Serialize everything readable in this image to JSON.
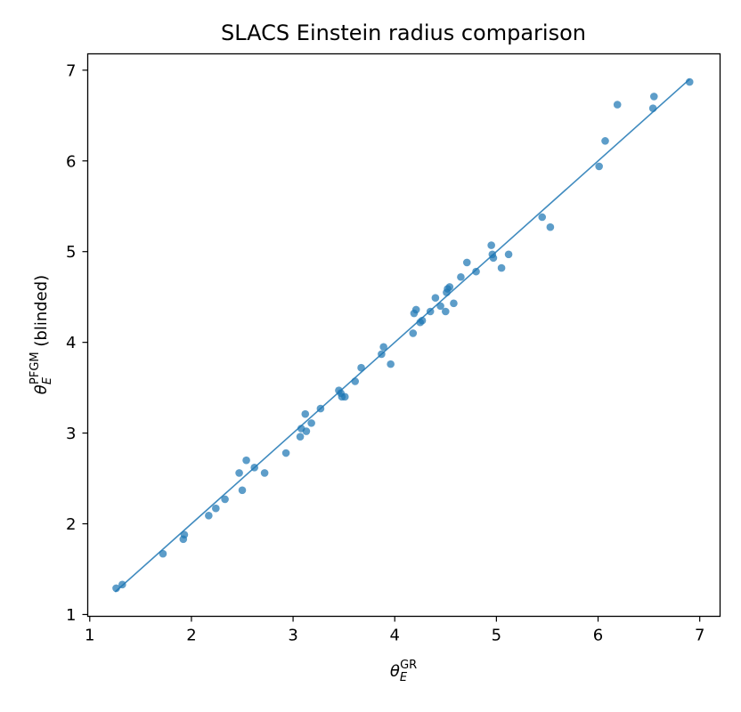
{
  "chart_data": {
    "type": "scatter",
    "title": "SLACS Einstein radius comparison",
    "xlabel": {
      "symbol": "θ",
      "subscript": "E",
      "superscript": "GR",
      "suffix": ""
    },
    "ylabel": {
      "symbol": "θ",
      "subscript": "E",
      "superscript": "PFGM",
      "suffix": " (blinded)"
    },
    "xlim": [
      0.98,
      7.2
    ],
    "ylim": [
      0.98,
      7.18
    ],
    "xticks": [
      1,
      2,
      3,
      4,
      5,
      6,
      7
    ],
    "yticks": [
      1,
      2,
      3,
      4,
      5,
      6,
      7
    ],
    "grid": false,
    "colors": {
      "marker": "#1f77b4",
      "line": "#1f77b4"
    },
    "reference_line": {
      "x": [
        1.25,
        6.9
      ],
      "y": [
        1.25,
        6.9
      ]
    },
    "points": [
      [
        1.26,
        1.29
      ],
      [
        1.32,
        1.33
      ],
      [
        1.72,
        1.67
      ],
      [
        1.92,
        1.83
      ],
      [
        1.93,
        1.88
      ],
      [
        2.17,
        2.09
      ],
      [
        2.24,
        2.17
      ],
      [
        2.33,
        2.27
      ],
      [
        2.47,
        2.56
      ],
      [
        2.5,
        2.37
      ],
      [
        2.54,
        2.7
      ],
      [
        2.62,
        2.62
      ],
      [
        2.72,
        2.56
      ],
      [
        2.93,
        2.78
      ],
      [
        3.07,
        2.96
      ],
      [
        3.08,
        3.05
      ],
      [
        3.12,
        3.21
      ],
      [
        3.13,
        3.02
      ],
      [
        3.18,
        3.11
      ],
      [
        3.27,
        3.27
      ],
      [
        3.45,
        3.47
      ],
      [
        3.47,
        3.44
      ],
      [
        3.48,
        3.4
      ],
      [
        3.51,
        3.4
      ],
      [
        3.61,
        3.57
      ],
      [
        3.67,
        3.72
      ],
      [
        3.87,
        3.87
      ],
      [
        3.89,
        3.95
      ],
      [
        3.96,
        3.76
      ],
      [
        4.18,
        4.1
      ],
      [
        4.19,
        4.32
      ],
      [
        4.21,
        4.36
      ],
      [
        4.25,
        4.22
      ],
      [
        4.27,
        4.24
      ],
      [
        4.35,
        4.34
      ],
      [
        4.4,
        4.49
      ],
      [
        4.45,
        4.4
      ],
      [
        4.5,
        4.34
      ],
      [
        4.51,
        4.55
      ],
      [
        4.52,
        4.59
      ],
      [
        4.54,
        4.61
      ],
      [
        4.58,
        4.43
      ],
      [
        4.65,
        4.72
      ],
      [
        4.71,
        4.88
      ],
      [
        4.8,
        4.78
      ],
      [
        4.95,
        5.07
      ],
      [
        4.96,
        4.97
      ],
      [
        4.97,
        4.93
      ],
      [
        5.05,
        4.82
      ],
      [
        5.12,
        4.97
      ],
      [
        5.45,
        5.38
      ],
      [
        5.53,
        5.27
      ],
      [
        6.01,
        5.94
      ],
      [
        6.07,
        6.22
      ],
      [
        6.19,
        6.62
      ],
      [
        6.54,
        6.58
      ],
      [
        6.55,
        6.71
      ],
      [
        6.9,
        6.87
      ]
    ]
  }
}
